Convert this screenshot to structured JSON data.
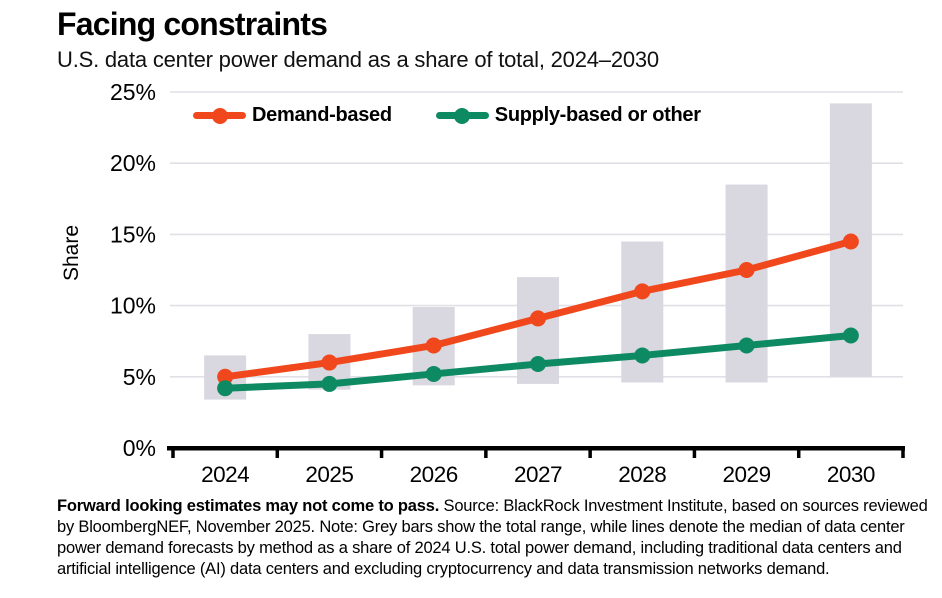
{
  "header": {
    "title": "Facing constraints",
    "subtitle": "U.S. data center power demand as a share of total, 2024–2030"
  },
  "chart_data": {
    "type": "line",
    "title": "Facing constraints",
    "subtitle": "U.S. data center power demand as a share of total, 2024–2030",
    "categories": [
      "2024",
      "2025",
      "2026",
      "2027",
      "2028",
      "2029",
      "2030"
    ],
    "series": [
      {
        "name": "Demand-based",
        "color": "#f0481c",
        "values": [
          5.0,
          6.0,
          7.2,
          9.1,
          11.0,
          12.5,
          14.5
        ]
      },
      {
        "name": "Supply-based or other",
        "color": "#0e8a63",
        "values": [
          4.2,
          4.5,
          5.2,
          5.9,
          6.5,
          7.2,
          7.9
        ]
      }
    ],
    "range_bars": {
      "label": "Total range (grey bars)",
      "color": "#d9d7e0",
      "low": [
        3.4,
        4.1,
        4.4,
        4.5,
        4.6,
        4.6,
        5.0
      ],
      "high": [
        6.5,
        8.0,
        9.9,
        12.0,
        14.5,
        18.5,
        24.2
      ]
    },
    "xlabel": "",
    "ylabel": "Share",
    "ylim": [
      0,
      25
    ],
    "yticks": [
      0,
      5,
      10,
      15,
      20,
      25
    ],
    "ytick_suffix": "%",
    "grid": true,
    "gridline_color": "#e1e0e6",
    "axis_color": "#000000",
    "legend_position": "top-inside"
  },
  "footnote": {
    "bold": "Forward looking estimates may not come to pass.",
    "text": " Source: BlackRock Investment Institute, based on sources reviewed by BloombergNEF, November 2025. Note: Grey bars show the total range, while lines denote the median of data center power demand forecasts by method as a share of 2024 U.S. total power demand, including traditional data centers and artificial intelligence (AI) data centers and excluding cryptocurrency and data transmission networks demand."
  }
}
